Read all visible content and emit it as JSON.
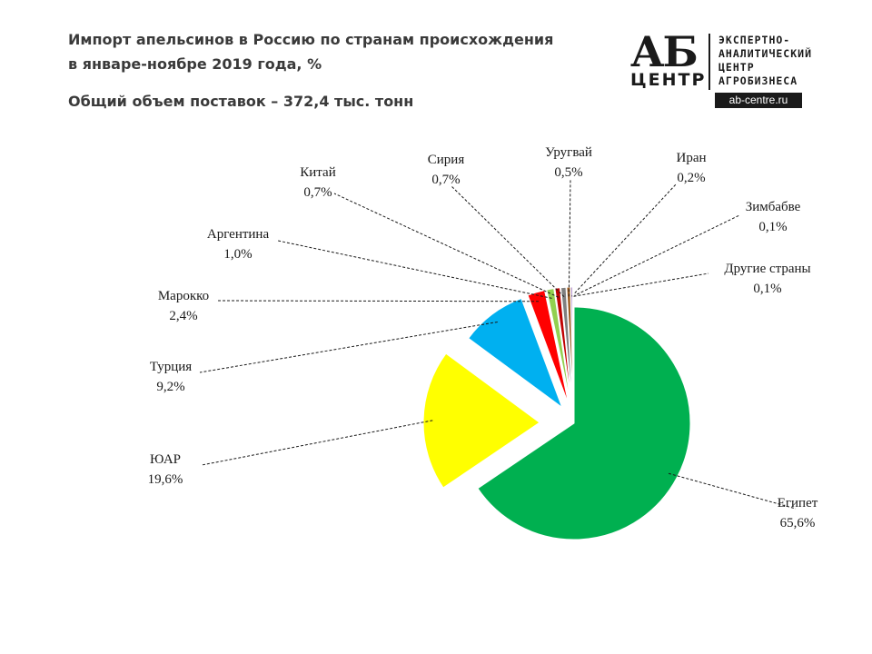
{
  "header": {
    "title_line1": "Импорт апельсинов в Россию по странам происхождения",
    "title_line2": "в январе-ноябре 2019 года, %",
    "subtitle": "Общий объем поставок   – 372,4 тыс. тонн"
  },
  "logo": {
    "ab": "АБ",
    "centr": "ЦЕНТР",
    "line1": "ЭКСПЕРТНО-",
    "line2": "АНАЛИТИЧЕСКИЙ",
    "line3": "ЦЕНТР",
    "line4": "АГРОБИЗНЕСА",
    "url": "ab-centre.ru"
  },
  "chart_data": {
    "type": "pie",
    "title": "Импорт апельсинов в Россию по странам происхождения в январе-ноябре 2019 года, %",
    "subtitle": "Общий объем поставок   – 372,4 тыс. тонн",
    "slices": [
      {
        "name": "Египет",
        "value": 65.6,
        "label": "65,6%",
        "color": "#00b050"
      },
      {
        "name": "ЮАР",
        "value": 19.6,
        "label": "19,6%",
        "color": "#ffff00"
      },
      {
        "name": "Турция",
        "value": 9.2,
        "label": "9,2%",
        "color": "#00b0f0"
      },
      {
        "name": "Марокко",
        "value": 2.4,
        "label": "2,4%",
        "color": "#ff0000"
      },
      {
        "name": "Аргентина",
        "value": 1.0,
        "label": "1,0%",
        "color": "#92d050"
      },
      {
        "name": "Китай",
        "value": 0.7,
        "label": "0,7%",
        "color": "#c00000"
      },
      {
        "name": "Сирия",
        "value": 0.7,
        "label": "0,7%",
        "color": "#7f7f7f"
      },
      {
        "name": "Уругвай",
        "value": 0.5,
        "label": "0,5%",
        "color": "#9c5b1f"
      },
      {
        "name": "Иран",
        "value": 0.2,
        "label": "0,2%",
        "color": "#7030a0"
      },
      {
        "name": "Зимбабве",
        "value": 0.1,
        "label": "0,1%",
        "color": "#404040"
      },
      {
        "name": "Другие страны",
        "value": 0.1,
        "label": "0,1%",
        "color": "#bfbfbf"
      }
    ]
  }
}
